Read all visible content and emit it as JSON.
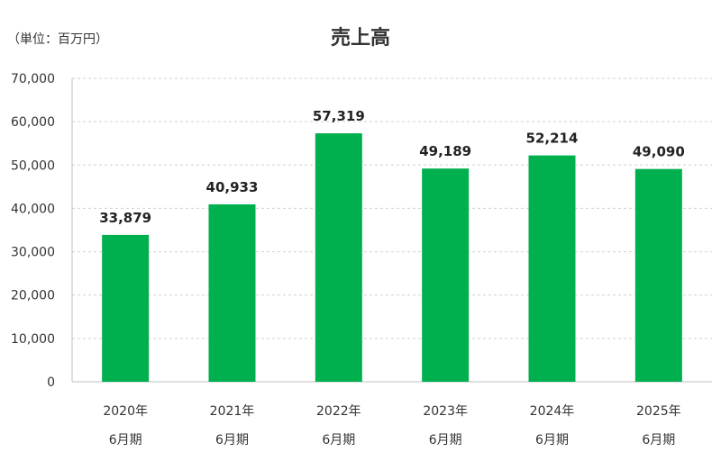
{
  "chart_data": {
    "type": "bar",
    "title": "売上高",
    "unit_label": "（単位：百万円）",
    "categories": [
      [
        "2020年",
        "6月期"
      ],
      [
        "2021年",
        "6月期"
      ],
      [
        "2022年",
        "6月期"
      ],
      [
        "2023年",
        "6月期"
      ],
      [
        "2024年",
        "6月期"
      ],
      [
        "2025年",
        "6月期"
      ]
    ],
    "values": [
      33879,
      40933,
      57319,
      49189,
      52214,
      49090
    ],
    "value_labels": [
      "33,879",
      "40,933",
      "57,319",
      "49,189",
      "52,214",
      "49,090"
    ],
    "ylim": [
      0,
      70000
    ],
    "yticks": [
      0,
      10000,
      20000,
      30000,
      40000,
      50000,
      60000,
      70000
    ],
    "ytick_labels": [
      "0",
      "10,000",
      "20,000",
      "30,000",
      "40,000",
      "50,000",
      "60,000",
      "70,000"
    ],
    "grid": true,
    "colors": {
      "bar": "#00b04f",
      "grid": "#d0d0d0",
      "axis": "#bfbfbf"
    }
  }
}
